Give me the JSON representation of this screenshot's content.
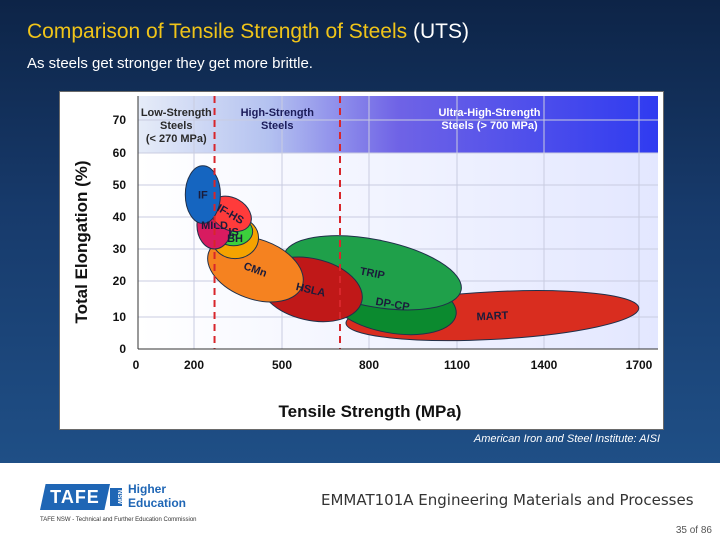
{
  "slide": {
    "title_main": "Comparison of Tensile Strength of Steels",
    "title_accent": "(UTS)",
    "subtitle": "As steels get stronger they get more brittle.",
    "credit": "American Iron and Steel Institute: AISI"
  },
  "footer": {
    "logo_text": "TAFE",
    "logo_state": "NSW",
    "higher_line1": "Higher",
    "higher_line2": "Education",
    "tagline": "TAFE NSW - Technical and Further Education Commission",
    "course": "EMMAT101A Engineering Materials and Processes",
    "page": "35 of 86"
  },
  "colors": {
    "title": "#f0c419",
    "background_dark": "#0d2447",
    "band_light": "#e6ecf8",
    "band_mid": "#6f63e6",
    "band_strong": "#2f3bf0"
  },
  "chart_data": {
    "type": "scatter",
    "title": "",
    "xlabel": "Tensile Strength (MPa)",
    "ylabel": "Total Elongation (%)",
    "x_ticks": [
      "0",
      "200",
      "500",
      "800",
      "1100",
      "1400",
      "1700"
    ],
    "y_ticks": [
      "0",
      "10",
      "20",
      "30",
      "40",
      "50",
      "60",
      "70"
    ],
    "ylim": [
      0,
      75
    ],
    "bands": [
      {
        "label_lines": [
          "Low-Strength",
          "Steels",
          "(< 270 MPa)"
        ],
        "range_mpa": [
          0,
          270
        ]
      },
      {
        "label_lines": [
          "High-Strength",
          "Steels"
        ],
        "range_mpa": [
          270,
          700
        ]
      },
      {
        "label_lines": [
          "Ultra-High-Strength",
          "Steels (> 700 MPa)"
        ],
        "range_mpa": [
          700,
          1700
        ]
      }
    ],
    "regions": [
      {
        "name": "MART",
        "color": "#d92d1f",
        "x_range": [
          720,
          1700
        ],
        "y_range": [
          3,
          17
        ]
      },
      {
        "name": "DP-CP",
        "color": "#0b8a2f",
        "x_range": [
          660,
          1100
        ],
        "y_range": [
          5,
          22
        ]
      },
      {
        "name": "TRIP",
        "color": "#1fa04a",
        "x_range": [
          500,
          1120
        ],
        "y_range": [
          13,
          33
        ]
      },
      {
        "name": "HSLA",
        "color": "#c01818",
        "x_range": [
          420,
          780
        ],
        "y_range": [
          9,
          27
        ]
      },
      {
        "name": "CMn",
        "color": "#f58220",
        "x_range": [
          240,
          580
        ],
        "y_range": [
          15,
          33
        ]
      },
      {
        "name": "BH",
        "color": "#f5a300",
        "x_range": [
          260,
          420
        ],
        "y_range": [
          27,
          40
        ]
      },
      {
        "name": "IS",
        "color": "#3ccf3c",
        "x_range": [
          270,
          400
        ],
        "y_range": [
          31,
          40
        ]
      },
      {
        "name": "MILD",
        "color": "#d81b60",
        "x_range": [
          210,
          330
        ],
        "y_range": [
          30,
          45
        ]
      },
      {
        "name": "IF-HS",
        "color": "#ff3b3b",
        "x_range": [
          250,
          400
        ],
        "y_range": [
          36,
          46
        ]
      },
      {
        "name": "IF",
        "color": "#1565c0",
        "x_range": [
          170,
          290
        ],
        "y_range": [
          38,
          56
        ]
      }
    ]
  }
}
